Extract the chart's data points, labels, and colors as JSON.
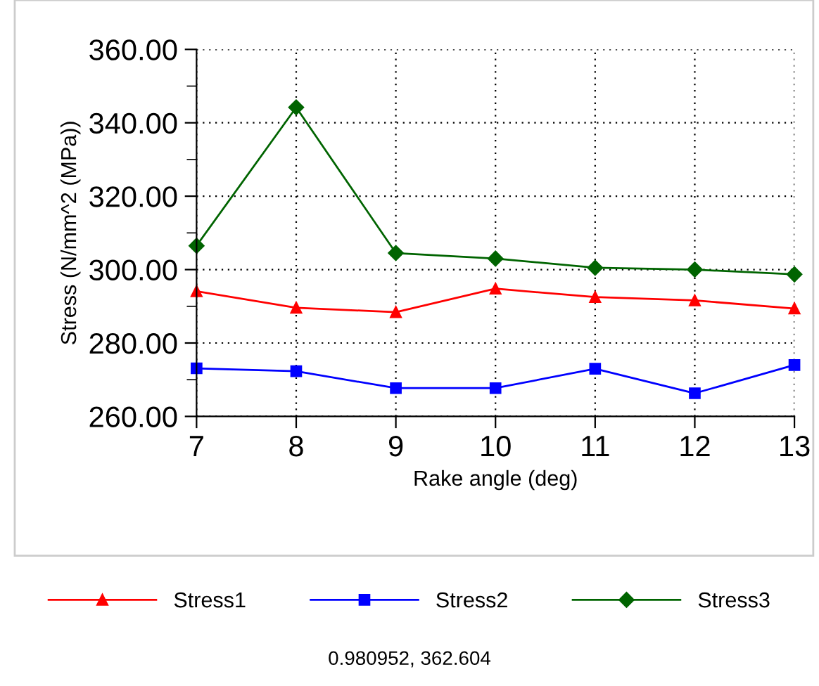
{
  "chart_data": {
    "type": "line",
    "xlabel": "Rake angle (deg)",
    "ylabel": "Stress (N/mm^2 (MPa))",
    "x": [
      7,
      8,
      9,
      10,
      11,
      12,
      13
    ],
    "series": [
      {
        "name": "Stress1",
        "color": "#ff0000",
        "marker": "triangle",
        "values": [
          294.1,
          289.6,
          288.4,
          294.8,
          292.5,
          291.6,
          289.4
        ]
      },
      {
        "name": "Stress2",
        "color": "#0000ff",
        "marker": "square",
        "values": [
          273.1,
          272.3,
          267.7,
          267.7,
          273.0,
          266.3,
          274.0
        ]
      },
      {
        "name": "Stress3",
        "color": "#006400",
        "marker": "diamond",
        "values": [
          306.5,
          344.2,
          304.5,
          303.0,
          300.5,
          300.0,
          298.7
        ]
      }
    ],
    "xlim": [
      7,
      13
    ],
    "xticks": [
      7,
      8,
      9,
      10,
      11,
      12,
      13
    ],
    "ylim": [
      260,
      360
    ],
    "yticks": [
      {
        "value": 260,
        "label": "260.00"
      },
      {
        "value": 270,
        "label": null
      },
      {
        "value": 280,
        "label": "280.00"
      },
      {
        "value": 290,
        "label": null
      },
      {
        "value": 300,
        "label": "300.00"
      },
      {
        "value": 310,
        "label": null
      },
      {
        "value": 320,
        "label": "320.00"
      },
      {
        "value": 330,
        "label": null
      },
      {
        "value": 340,
        "label": "340.00"
      },
      {
        "value": 350,
        "label": null
      },
      {
        "value": 360,
        "label": "360.00"
      }
    ],
    "grid": true,
    "legend": "bottom",
    "line_style": "solid",
    "annotations": [
      "0.980952, 362.604"
    ]
  }
}
